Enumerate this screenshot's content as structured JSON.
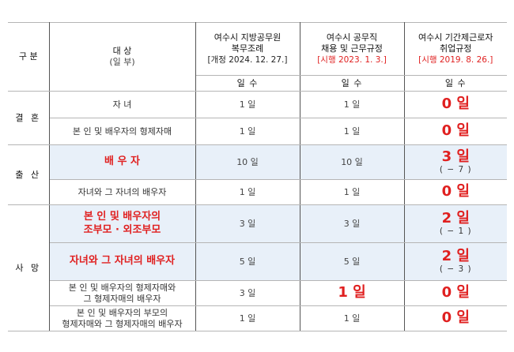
{
  "table": {
    "header": {
      "category": "구 분",
      "subject": "대 상",
      "subject_sub": "(일 부)",
      "columns": [
        {
          "line1": "여수시 지방공무원",
          "line2": "복무조례",
          "note": "[개정 2024. 12. 27.]",
          "note_color": "#222222"
        },
        {
          "line1": "여수시 공무직",
          "line2": "채용 및 근무규정",
          "note": "[시행 2023. 1. 3.]",
          "note_color": "#e02020"
        },
        {
          "line1": "여수시 기간제근로자",
          "line2": "취업규정",
          "note": "[시행 2019. 8. 26.]",
          "note_color": "#e02020"
        }
      ],
      "days_label": "일 수"
    },
    "groups": {
      "marriage": "결 혼",
      "birth": "출 산",
      "death": "사 망"
    },
    "rows": [
      {
        "subject": "자 녀",
        "v1": "1 일",
        "v2": "1 일",
        "v3": "0 일",
        "v3_diff": ""
      },
      {
        "subject": "본 인 및 배우자의 형제자매",
        "v1": "1 일",
        "v2": "1 일",
        "v3": "0 일",
        "v3_diff": ""
      },
      {
        "subject": "배 우 자",
        "v1": "10 일",
        "v2": "10 일",
        "v3": "3 일",
        "v3_diff": "( − 7 )"
      },
      {
        "subject": "자녀와 그 자녀의 배우자",
        "v1": "1 일",
        "v2": "1 일",
        "v3": "0 일",
        "v3_diff": ""
      },
      {
        "subject_line1": "본 인 및 배우자의",
        "subject_line2": "조부모 · 외조부모",
        "v1": "3 일",
        "v2": "3 일",
        "v3": "2 일",
        "v3_diff": "( − 1 )"
      },
      {
        "subject": "자녀와 그 자녀의 배우자",
        "v1": "5 일",
        "v2": "5 일",
        "v3": "2 일",
        "v3_diff": "( − 3 )"
      },
      {
        "subject_line1": "본 인 및 배우자의 형제자매와",
        "subject_line2": "그 형제자매의 배우자",
        "v1": "3 일",
        "v2": "1 일",
        "v3": "0 일",
        "v3_diff": ""
      },
      {
        "subject_line1": "본 인 및 배우자의 부모의",
        "subject_line2": "형제자매와 그 형제자매의 배우자",
        "v1": "1 일",
        "v2": "1 일",
        "v3": "0 일",
        "v3_diff": ""
      }
    ],
    "colors": {
      "highlight_red": "#e02020",
      "shade_blue": "#e8f0f9",
      "rule": "#333333"
    }
  }
}
